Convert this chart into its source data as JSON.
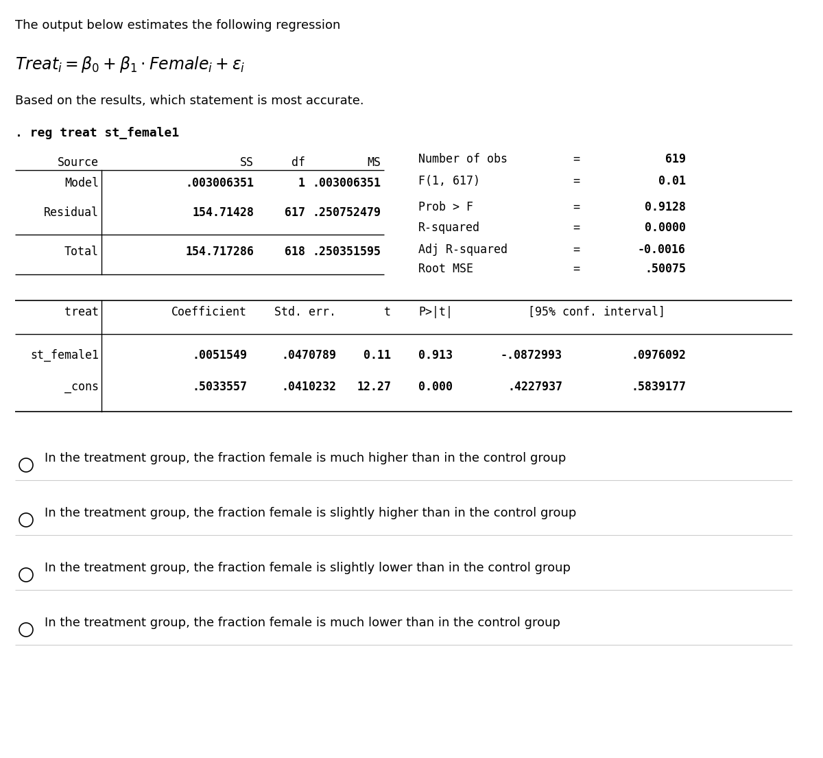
{
  "title_text": "The output below estimates the following regression",
  "question": "Based on the results, which statement is most accurate.",
  "command": ". reg treat st_female1",
  "stats_labels": [
    "Number of obs",
    "F(1, 617)",
    "Prob > F",
    "R-squared",
    "Adj R-squared",
    "Root MSE"
  ],
  "stats_values": [
    "619",
    "0.01",
    "0.9128",
    "0.0000",
    "-0.0016",
    ".50075"
  ],
  "anova_rows": [
    [
      "Model",
      ".003006351",
      "1",
      ".003006351"
    ],
    [
      "Residual",
      "154.71428",
      "617",
      ".250752479"
    ],
    [
      "Total",
      "154.717286",
      "618",
      ".250351595"
    ]
  ],
  "reg_rows": [
    [
      "st_female1",
      ".0051549",
      ".0470789",
      "0.11",
      "0.913",
      "-.0872993",
      ".0976092"
    ],
    [
      "_cons",
      ".5033557",
      ".0410232",
      "12.27",
      "0.000",
      ".4227937",
      ".5839177"
    ]
  ],
  "choices": [
    "In the treatment group, the fraction female is much higher than in the control group",
    "In the treatment group, the fraction female is slightly higher than in the control group",
    "In the treatment group, the fraction female is slightly lower than in the control group",
    "In the treatment group, the fraction female is much lower than in the control group"
  ],
  "bg_color": "#ffffff",
  "text_color": "#000000",
  "mono_font": "DejaVu Sans Mono",
  "regular_font": "DejaVu Sans"
}
